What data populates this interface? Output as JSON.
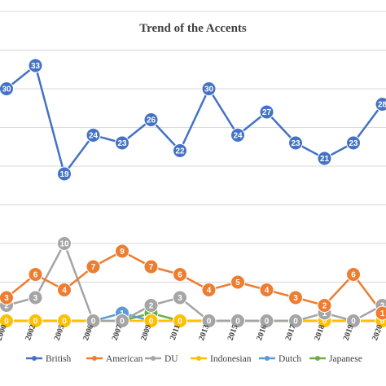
{
  "chart_data": {
    "type": "line",
    "title": "Trend of the Accents",
    "categories": [
      "2000",
      "2002",
      "2005",
      "2006",
      "2007",
      "2009",
      "2011",
      "2013",
      "2015",
      "2016",
      "2017",
      "2018",
      "2019",
      "2020"
    ],
    "ylim": [
      0,
      40
    ],
    "grid": true,
    "legend_position": "bottom",
    "series": [
      {
        "name": "British",
        "color": "#4472c4",
        "values": [
          30,
          33,
          19,
          24,
          23,
          26,
          22,
          30,
          24,
          27,
          23,
          21,
          23,
          28
        ]
      },
      {
        "name": "American",
        "color": "#ed7d31",
        "values": [
          3,
          6,
          4,
          7,
          9,
          7,
          6,
          4,
          5,
          4,
          3,
          2,
          6,
          1
        ]
      },
      {
        "name": "DU",
        "color": "#a5a5a5",
        "values": [
          2,
          3,
          10,
          0,
          0,
          2,
          3,
          0,
          0,
          0,
          0,
          1,
          0,
          2
        ]
      },
      {
        "name": "Indonesian",
        "color": "#ffc000",
        "values": [
          0,
          0,
          0,
          0,
          0,
          0,
          0,
          0,
          0,
          0,
          0,
          0,
          0,
          0
        ]
      },
      {
        "name": "Dutch",
        "color": "#5b9bd5",
        "values": [
          0,
          0,
          0,
          0,
          1,
          0,
          0,
          0,
          0,
          0,
          0,
          0,
          0,
          0
        ]
      },
      {
        "name": "Japanese",
        "color": "#70ad47",
        "values": [
          0,
          0,
          0,
          0,
          0,
          1,
          0,
          0,
          0,
          0,
          0,
          0,
          0,
          0
        ]
      }
    ]
  }
}
